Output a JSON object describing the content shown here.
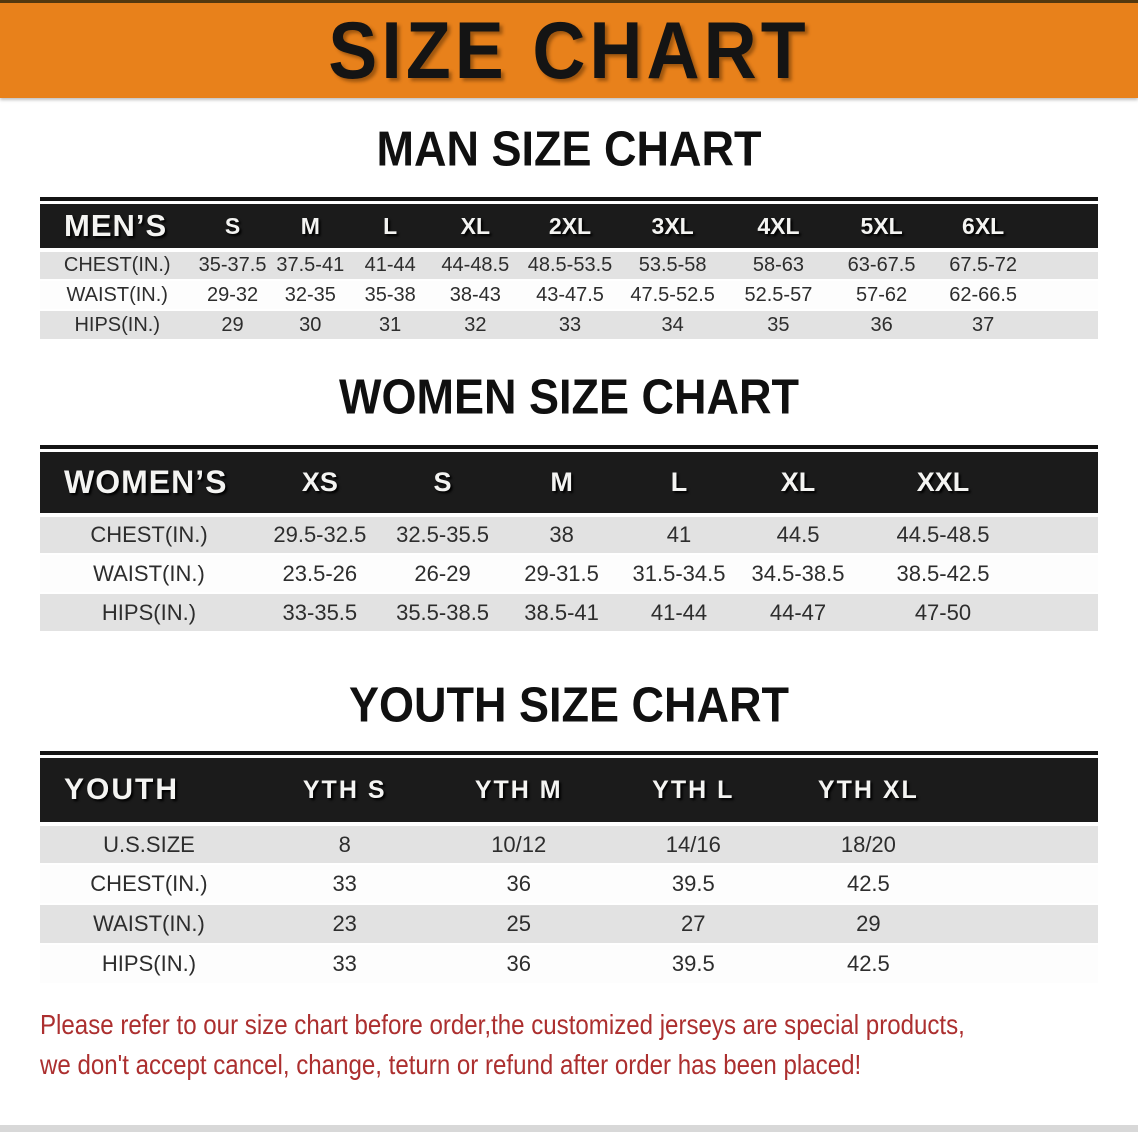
{
  "banner": {
    "title": "SIZE CHART"
  },
  "colors": {
    "banner_orange": "#E8811B",
    "table_header_bg": "#1B1B1B",
    "row_stripe_gray": "#E2E2E2",
    "disclaimer_red": "#AC2F2F"
  },
  "sections": [
    {
      "heading": "MAN SIZE CHART",
      "table": {
        "header_label": "MEN’S",
        "columns": [
          "S",
          "M",
          "L",
          "XL",
          "2XL",
          "3XL",
          "4XL",
          "5XL",
          "6XL"
        ],
        "rows": [
          {
            "label": "CHEST(IN.)",
            "values": [
              "35-37.5",
              "37.5-41",
              "41-44",
              "44-48.5",
              "48.5-53.5",
              "53.5-58",
              "58-63",
              "63-67.5",
              "67.5-72"
            ]
          },
          {
            "label": "WAIST(IN.)",
            "values": [
              "29-32",
              "32-35",
              "35-38",
              "38-43",
              "43-47.5",
              "47.5-52.5",
              "52.5-57",
              "57-62",
              "62-66.5"
            ]
          },
          {
            "label": "HIPS(IN.)",
            "values": [
              "29",
              "30",
              "31",
              "32",
              "33",
              "34",
              "35",
              "36",
              "37"
            ]
          }
        ]
      }
    },
    {
      "heading": "WOMEN SIZE CHART",
      "table": {
        "header_label": "WOMEN’S",
        "columns": [
          "XS",
          "S",
          "M",
          "L",
          "XL",
          "XXL"
        ],
        "rows": [
          {
            "label": "CHEST(IN.)",
            "values": [
              "29.5-32.5",
              "32.5-35.5",
              "38",
              "41",
              "44.5",
              "44.5-48.5"
            ]
          },
          {
            "label": "WAIST(IN.)",
            "values": [
              "23.5-26",
              "26-29",
              "29-31.5",
              "31.5-34.5",
              "34.5-38.5",
              "38.5-42.5"
            ]
          },
          {
            "label": "HIPS(IN.)",
            "values": [
              "33-35.5",
              "35.5-38.5",
              "38.5-41",
              "41-44",
              "44-47",
              "47-50"
            ]
          }
        ]
      }
    },
    {
      "heading": "YOUTH SIZE CHART",
      "table": {
        "header_label": "YOUTH",
        "columns": [
          "YTH S",
          "YTH M",
          "YTH L",
          "YTH XL"
        ],
        "rows": [
          {
            "label": "U.S.SIZE",
            "values": [
              "8",
              "10/12",
              "14/16",
              "18/20"
            ]
          },
          {
            "label": "CHEST(IN.)",
            "values": [
              "33",
              "36",
              "39.5",
              "42.5"
            ]
          },
          {
            "label": "WAIST(IN.)",
            "values": [
              "23",
              "25",
              "27",
              "29"
            ]
          },
          {
            "label": "HIPS(IN.)",
            "values": [
              "33",
              "36",
              "39.5",
              "42.5"
            ]
          }
        ]
      }
    }
  ],
  "footer": {
    "line1": "Please refer to our size chart before order,the customized jerseys are special products,",
    "line2": "we don't accept cancel, change, teturn or refund after order has been placed!"
  }
}
